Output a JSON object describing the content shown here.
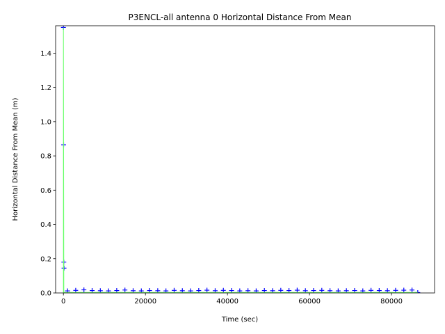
{
  "chart_data": {
    "type": "line",
    "title": "P3ENCL-all antenna 0 Horizontal Distance From Mean",
    "x_label": "Time (sec)",
    "y_label": "Horizontal Distance From Mean (m)",
    "xlim": [
      -1900,
      90500
    ],
    "ylim": [
      0,
      1.56
    ],
    "xticks": [
      0,
      20000,
      40000,
      60000,
      80000
    ],
    "yticks": [
      {
        "value": 0,
        "label": "0.0"
      },
      {
        "value": 0.2,
        "label": "0.2"
      },
      {
        "value": 0.4,
        "label": "0.4"
      },
      {
        "value": 0.6,
        "label": "0.6"
      },
      {
        "value": 0.8,
        "label": "0.8"
      },
      {
        "value": 1.0,
        "label": "1.0"
      },
      {
        "value": 1.2,
        "label": "1.2"
      },
      {
        "value": 1.4,
        "label": "1.4"
      }
    ],
    "series": [
      {
        "color": "#0000ff",
        "marker": "+",
        "x": [
          0,
          50,
          100,
          150,
          1000,
          3000,
          5000,
          7000,
          9000,
          11000,
          13000,
          15000,
          17000,
          19000,
          21000,
          23000,
          25000,
          27000,
          29000,
          31000,
          33000,
          35000,
          37000,
          39000,
          41000,
          43000,
          45000,
          47000,
          49000,
          51000,
          53000,
          55000,
          57000,
          59000,
          61000,
          63000,
          65000,
          67000,
          69000,
          71000,
          73000,
          75000,
          77000,
          79000,
          81000,
          83000,
          85000,
          86400
        ],
        "values": [
          1.55,
          0.865,
          0.18,
          0.145,
          0.012,
          0.015,
          0.018,
          0.014,
          0.013,
          0.012,
          0.014,
          0.017,
          0.013,
          0.012,
          0.014,
          0.013,
          0.012,
          0.015,
          0.013,
          0.012,
          0.014,
          0.016,
          0.013,
          0.015,
          0.014,
          0.012,
          0.013,
          0.012,
          0.014,
          0.013,
          0.015,
          0.014,
          0.016,
          0.013,
          0.014,
          0.015,
          0.013,
          0.012,
          0.013,
          0.014,
          0.012,
          0.015,
          0.014,
          0.013,
          0.015,
          0.016,
          0.017,
          0.002
        ]
      },
      {
        "color": "#66ff66",
        "x": [
          0,
          0,
          100,
          86400
        ],
        "values": [
          0,
          1.55,
          0.003,
          0.003
        ]
      }
    ]
  }
}
